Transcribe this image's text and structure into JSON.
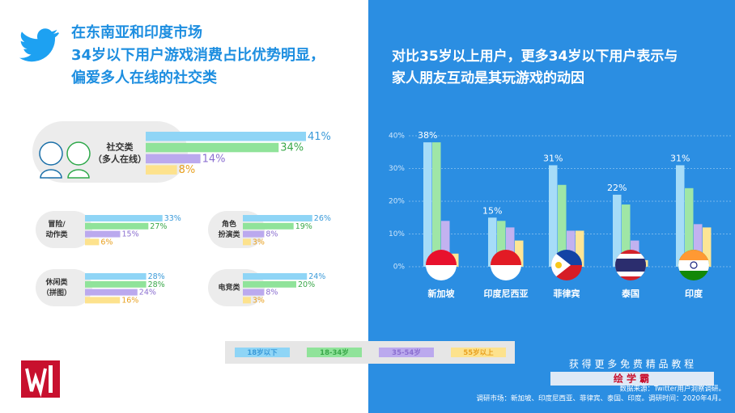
{
  "chart_data": [
    {
      "type": "bar",
      "orientation": "horizontal",
      "title": [
        "在东南亚和印度市场",
        "34岁以下用户游戏消费占比优势明显，",
        "偏爱多人在线的社交类"
      ],
      "categories": [
        [
          "社交类",
          "（多人在线）"
        ],
        [
          "冒险/",
          "动作类"
        ],
        [
          "角色",
          "扮演类"
        ],
        [
          "休闲类",
          "（拼图）"
        ],
        [
          "电竞类"
        ]
      ],
      "series": [
        {
          "name": "18岁以下",
          "color": "#8fd5f6",
          "values": [
            41,
            33,
            26,
            28,
            24
          ],
          "value_labels": [
            "41%",
            "33%",
            "26%",
            "28%",
            "24%"
          ]
        },
        {
          "name": "18-34岁",
          "color": "#90e39a",
          "values": [
            34,
            27,
            19,
            28,
            20
          ],
          "value_labels": [
            "34%",
            "27%",
            "19%",
            "28%",
            "20%"
          ]
        },
        {
          "name": "35-54岁",
          "color": "#bba9ee",
          "values": [
            14,
            15,
            8,
            24,
            8
          ],
          "value_labels": [
            "14%",
            "15%",
            "8%",
            "24%",
            "8%"
          ]
        },
        {
          "name": "55岁以上",
          "color": "#fde28d",
          "values": [
            8,
            6,
            3,
            16,
            3
          ],
          "value_labels": [
            "8%",
            "6%",
            "3%",
            "16%",
            "3%"
          ]
        }
      ]
    },
    {
      "type": "bar",
      "orientation": "vertical",
      "title": [
        "对比35岁以上用户，更多34岁以下用户表示与",
        "家人朋友互动是其玩游戏的动因"
      ],
      "categories": [
        "新加坡",
        "印度尼西亚",
        "菲律宾",
        "泰国",
        "印度"
      ],
      "series": [
        {
          "color": "#a6dcf8",
          "values": [
            38,
            15,
            31,
            22,
            31
          ],
          "value_labels": [
            "38%",
            "15%",
            "31%",
            "22%",
            "31%"
          ]
        },
        {
          "color": "#9fe6a6",
          "values": [
            38,
            14,
            25,
            19,
            24
          ]
        },
        {
          "color": "#c2b2f0",
          "values": [
            14,
            12,
            11,
            8,
            13
          ]
        },
        {
          "color": "#fde595",
          "values": [
            4,
            8,
            11,
            2,
            12
          ]
        }
      ],
      "ylim": [
        0,
        40
      ],
      "yticks": [
        {
          "value": 0,
          "label": "0%"
        },
        {
          "value": 10,
          "label": "10%"
        },
        {
          "value": 20,
          "label": "20%"
        },
        {
          "value": 30,
          "label": "30%"
        },
        {
          "value": 40,
          "label": "40%"
        }
      ],
      "grid": true
    }
  ],
  "footer": {
    "watermark": [
      "获 得 更 多 免 费 精 品 教 程",
      "绘 学 霸"
    ],
    "source": "数据来源：Twitter用户洞察调研。",
    "markets": "调研市场：新加坡、印度尼西亚、菲律宾、泰国、印度。调研时间：2020年4月。"
  }
}
